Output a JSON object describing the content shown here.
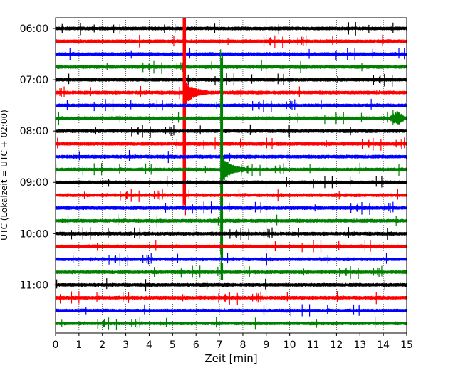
{
  "chart_data": {
    "type": "line",
    "title": "",
    "xlabel": "Zeit  [min]",
    "ylabel": "UTC (Lokalzeit = UTC + 02:00)",
    "xlim": [
      0,
      15
    ],
    "x_ticks": [
      "0",
      "1",
      "2",
      "3",
      "4",
      "5",
      "6",
      "7",
      "8",
      "9",
      "10",
      "11",
      "12",
      "13",
      "14",
      "15"
    ],
    "y_tick_labels": [
      "06:00",
      "07:00",
      "08:00",
      "09:00",
      "10:00",
      "11:00"
    ],
    "grid": "vertical dotted lines at each minute",
    "row_interval_minutes": 15,
    "trace_colors": [
      "#000000",
      "#ff0000",
      "#0000ff",
      "#008000"
    ],
    "rows": [
      {
        "utc": "06:00",
        "color": "#000000"
      },
      {
        "utc": "06:15",
        "color": "#ff0000"
      },
      {
        "utc": "06:30",
        "color": "#0000ff"
      },
      {
        "utc": "06:45",
        "color": "#008000"
      },
      {
        "utc": "07:00",
        "color": "#000000"
      },
      {
        "utc": "07:15",
        "color": "#ff0000"
      },
      {
        "utc": "07:30",
        "color": "#0000ff"
      },
      {
        "utc": "07:45",
        "color": "#008000"
      },
      {
        "utc": "08:00",
        "color": "#000000"
      },
      {
        "utc": "08:15",
        "color": "#ff0000"
      },
      {
        "utc": "08:30",
        "color": "#0000ff"
      },
      {
        "utc": "08:45",
        "color": "#008000"
      },
      {
        "utc": "09:00",
        "color": "#000000"
      },
      {
        "utc": "09:15",
        "color": "#ff0000"
      },
      {
        "utc": "09:30",
        "color": "#0000ff"
      },
      {
        "utc": "09:45",
        "color": "#008000"
      },
      {
        "utc": "10:00",
        "color": "#000000"
      },
      {
        "utc": "10:15",
        "color": "#ff0000"
      },
      {
        "utc": "10:30",
        "color": "#0000ff"
      },
      {
        "utc": "10:45",
        "color": "#008000"
      },
      {
        "utc": "11:00",
        "color": "#000000"
      },
      {
        "utc": "11:15",
        "color": "#ff0000"
      },
      {
        "utc": "11:30",
        "color": "#0000ff"
      },
      {
        "utc": "11:45",
        "color": "#008000"
      }
    ],
    "events": [
      {
        "trace_color": "#ff0000",
        "start_utc": "07:15",
        "time_min": 5.5,
        "description": "large red event"
      },
      {
        "trace_color": "#008000",
        "start_utc": "08:45",
        "time_min": 7.1,
        "description": "large green event"
      },
      {
        "trace_color": "#008000",
        "start_utc": "07:45",
        "time_min": 14.6,
        "description": "small green burst"
      }
    ]
  }
}
